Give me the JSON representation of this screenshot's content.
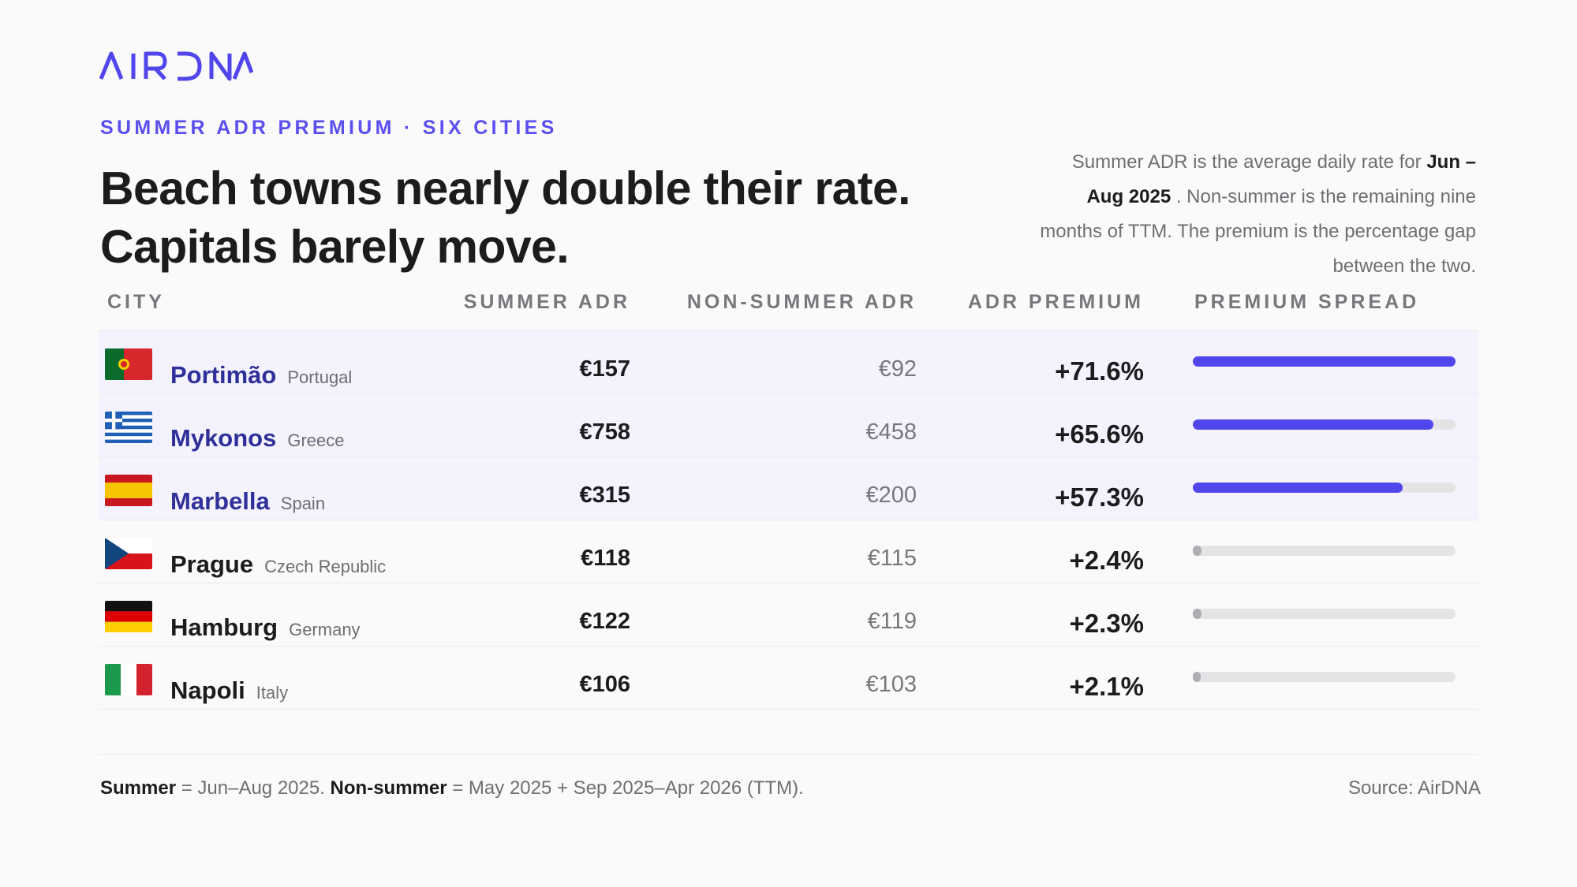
{
  "brand": {
    "logo_text": "AIRDNA",
    "accent_color": "#5146ec"
  },
  "header": {
    "kicker": "SUMMER ADR PREMIUM · SIX CITIES",
    "headline_line1": "Beach towns nearly double their rate.",
    "headline_line2": "Capitals barely move."
  },
  "note": {
    "part1": "Summer ADR is the average daily rate for ",
    "bold1": "Jun – Aug 2025",
    "part2": " . Non-summer is the remaining nine months of TTM. The premium is the percentage gap between the two."
  },
  "chart_data": {
    "type": "table",
    "columns": [
      "CITY",
      "SUMMER ADR",
      "NON-SUMMER ADR",
      "ADR PREMIUM",
      "PREMIUM SPREAD"
    ],
    "rows": [
      {
        "city": "Portimão",
        "country": "Portugal",
        "flag": "portugal-flag",
        "summer": "€157",
        "non_summer": "€92",
        "premium": "+71.6%",
        "premium_value": 71.6,
        "highlight": true
      },
      {
        "city": "Mykonos",
        "country": "Greece",
        "flag": "greece-flag",
        "summer": "€758",
        "non_summer": "€458",
        "premium": "+65.6%",
        "premium_value": 65.6,
        "highlight": true
      },
      {
        "city": "Marbella",
        "country": "Spain",
        "flag": "spain-flag",
        "summer": "€315",
        "non_summer": "€200",
        "premium": "+57.3%",
        "premium_value": 57.3,
        "highlight": true
      },
      {
        "city": "Prague",
        "country": "Czech Republic",
        "flag": "czech-flag",
        "summer": "€118",
        "non_summer": "€115",
        "premium": "+2.4%",
        "premium_value": 2.4,
        "highlight": false
      },
      {
        "city": "Hamburg",
        "country": "Germany",
        "flag": "germany-flag",
        "summer": "€122",
        "non_summer": "€119",
        "premium": "+2.3%",
        "premium_value": 2.3,
        "highlight": false
      },
      {
        "city": "Napoli",
        "country": "Italy",
        "flag": "italy-flag",
        "summer": "€106",
        "non_summer": "€103",
        "premium": "+2.1%",
        "premium_value": 2.1,
        "highlight": false
      }
    ],
    "spread_max": 71.6,
    "colors": {
      "strong_bar": "#5146ec",
      "weak_bar": "#aeaeb2",
      "track": "#e4e4e7",
      "highlight_row": "#f3f2fd"
    }
  },
  "footer": {
    "summer_label": "Summer",
    "summer_text": " = Jun–Aug 2025. ",
    "nonsummer_label": "Non-summer",
    "nonsummer_text": " = May 2025 + Sep 2025–Apr 2026 (TTM).",
    "source": "Source: AirDNA"
  }
}
